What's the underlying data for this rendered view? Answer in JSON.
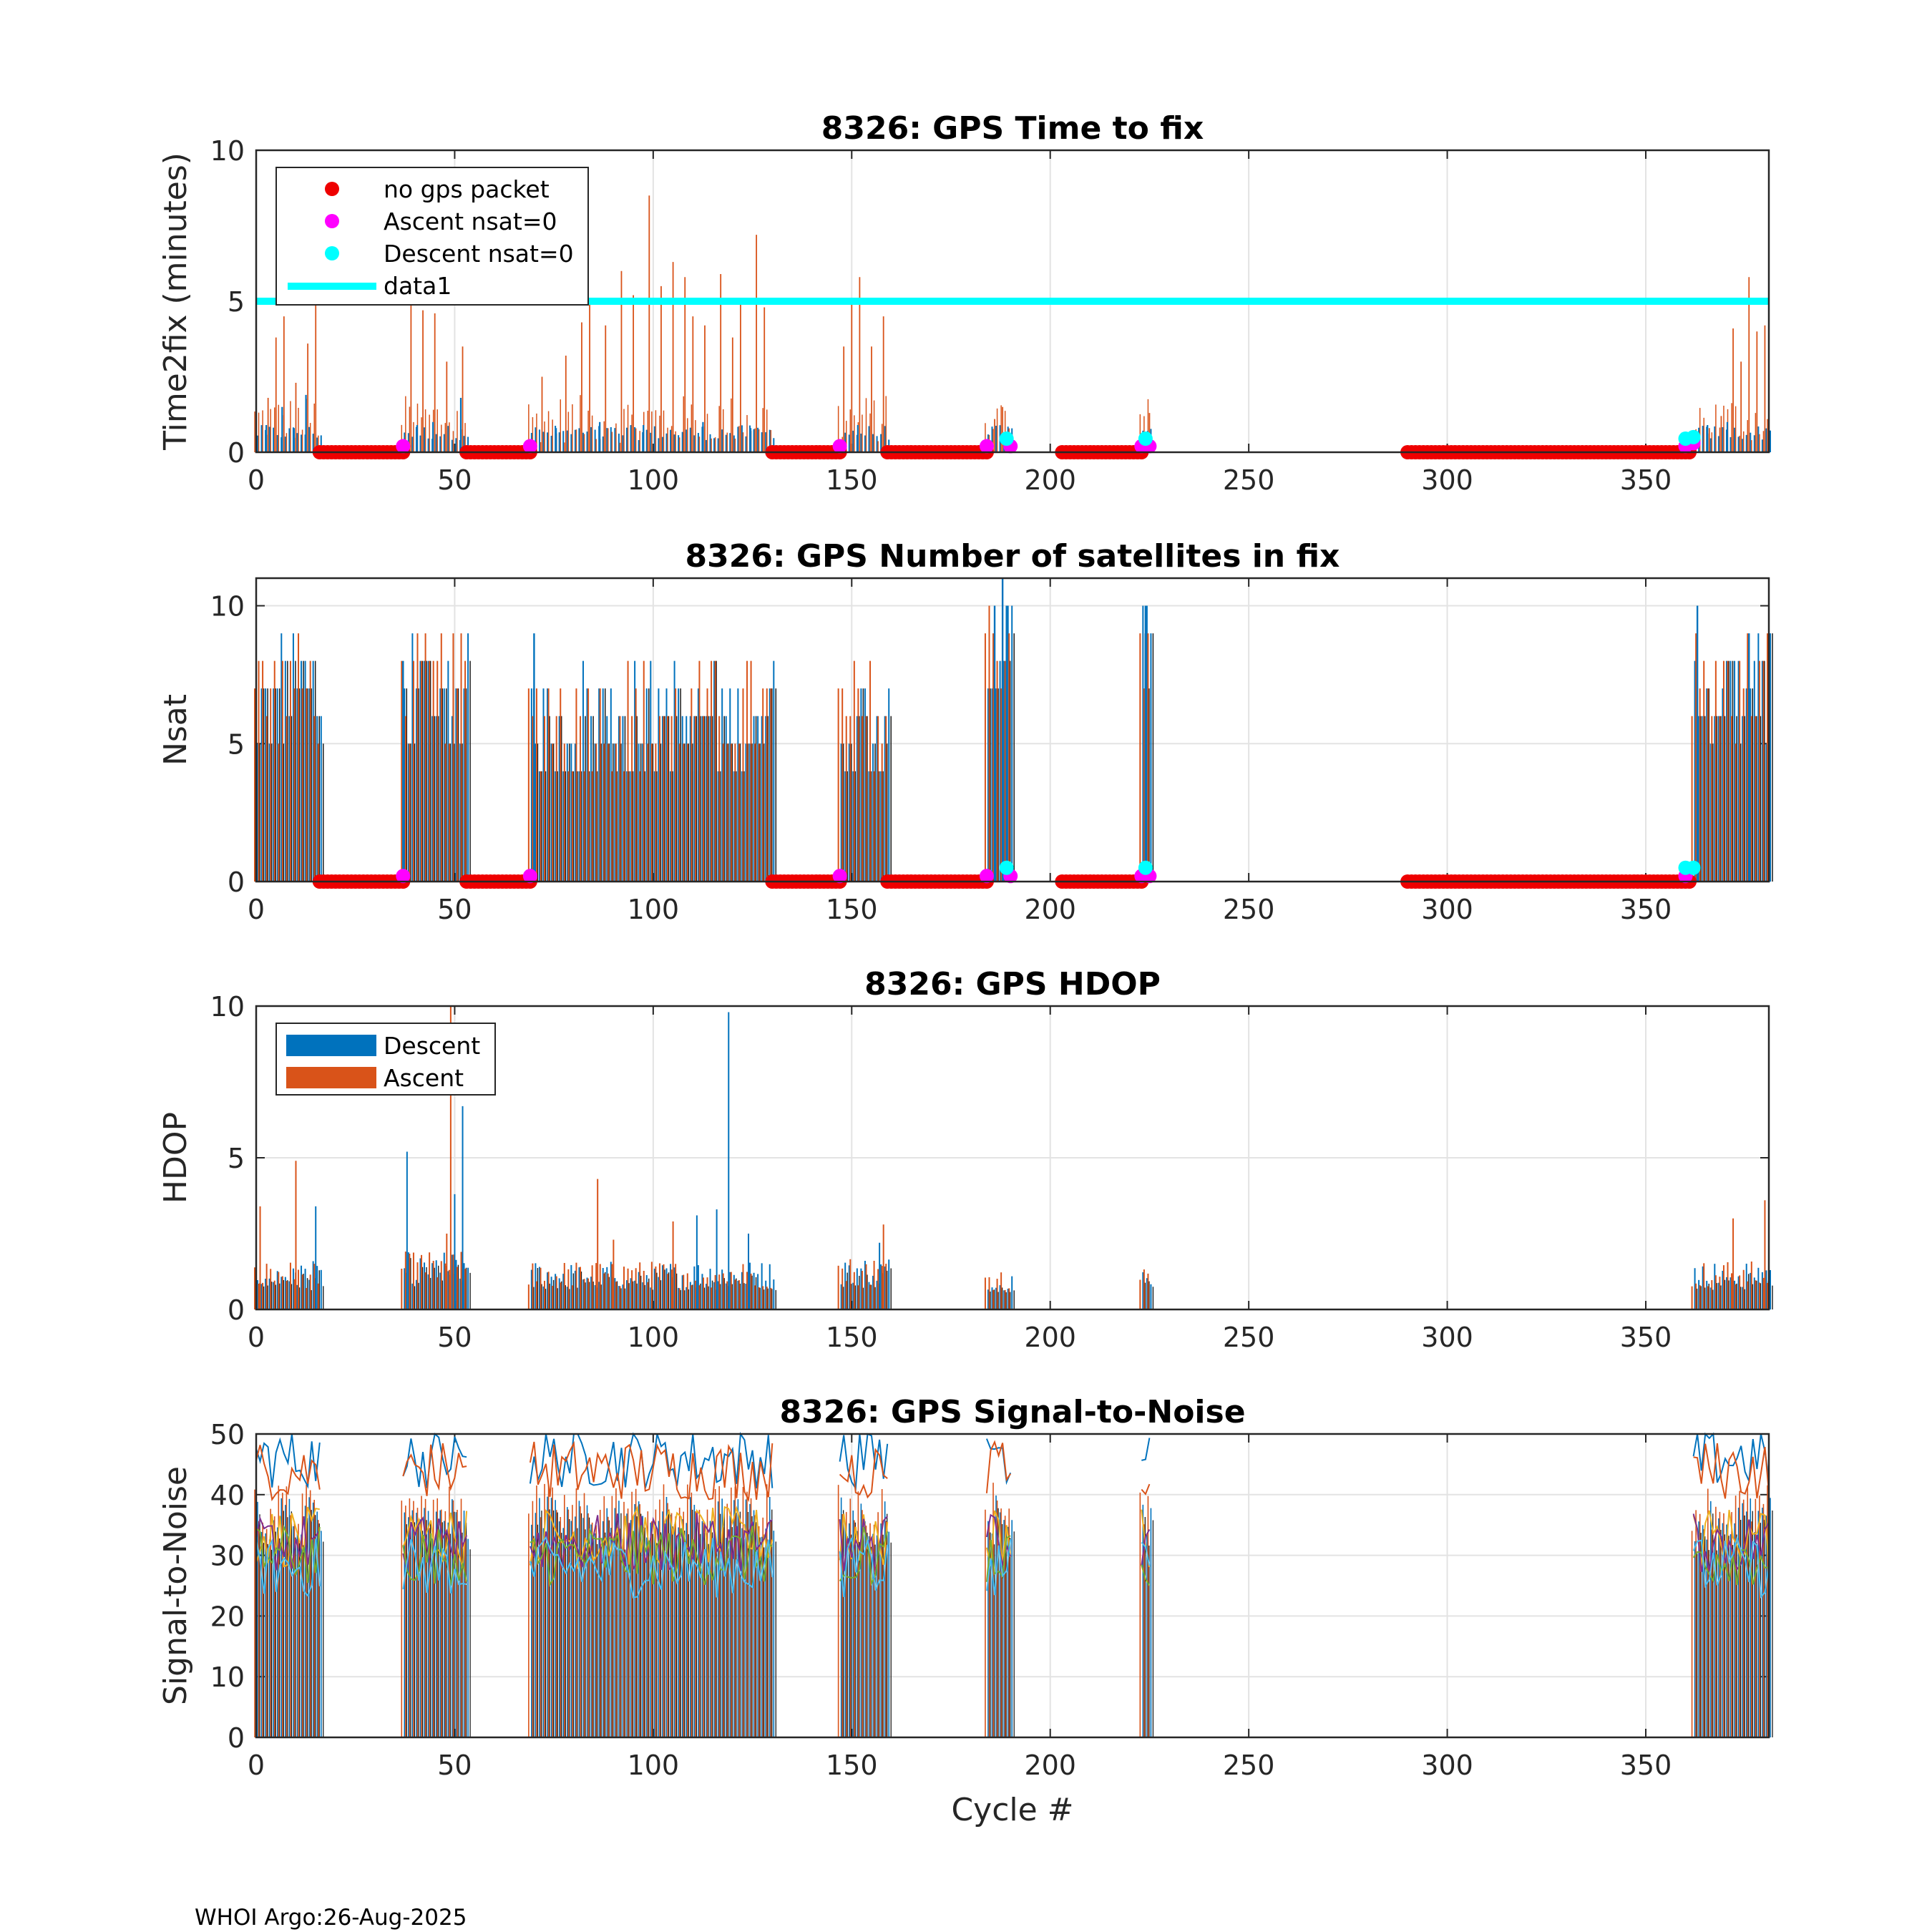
{
  "footer": "WHOI Argo:26-Aug-2025",
  "colors": {
    "descent": "#0072BD",
    "ascent": "#D95319",
    "no_gps": "#EE0000",
    "ascent_nsat0": "#FF00FF",
    "descent_nsat0": "#00FFFF",
    "data1": "#00FFFF",
    "snr_lines": [
      "#0072BD",
      "#D95319",
      "#EDB120",
      "#7E2F8E",
      "#77AC30",
      "#4DBEEE"
    ]
  },
  "chart_data": [
    {
      "id": "t2f",
      "type": "bar",
      "title": "8326: GPS Time to fix",
      "xlabel": "",
      "ylabel": "Time2fix (minutes)",
      "xlim": [
        0,
        381
      ],
      "ylim": [
        0,
        10
      ],
      "xticks": [
        "0",
        "50",
        "100",
        "150",
        "200",
        "250",
        "300",
        "350"
      ],
      "yticks": [
        "0",
        "5",
        "10"
      ],
      "grid": true,
      "legend": [
        "no gps packet",
        "Ascent nsat=0",
        "Descent nsat=0",
        "data1"
      ],
      "legend_location": "top-left",
      "data1_y": 5,
      "ascent_peaks": [
        {
          "x": 3,
          "y": 1.8
        },
        {
          "x": 5,
          "y": 3.8
        },
        {
          "x": 7,
          "y": 4.5
        },
        {
          "x": 10,
          "y": 2.3
        },
        {
          "x": 13,
          "y": 3.6
        },
        {
          "x": 15,
          "y": 5.0
        },
        {
          "x": 39,
          "y": 4.9
        },
        {
          "x": 42,
          "y": 4.7
        },
        {
          "x": 45,
          "y": 4.6
        },
        {
          "x": 48,
          "y": 3.0
        },
        {
          "x": 52,
          "y": 3.5
        },
        {
          "x": 72,
          "y": 2.5
        },
        {
          "x": 78,
          "y": 3.2
        },
        {
          "x": 82,
          "y": 4.3
        },
        {
          "x": 84,
          "y": 5.0
        },
        {
          "x": 88,
          "y": 4.2
        },
        {
          "x": 92,
          "y": 6.0
        },
        {
          "x": 95,
          "y": 5.2
        },
        {
          "x": 99,
          "y": 8.5
        },
        {
          "x": 102,
          "y": 5.5
        },
        {
          "x": 105,
          "y": 6.3
        },
        {
          "x": 108,
          "y": 5.8
        },
        {
          "x": 110,
          "y": 4.5
        },
        {
          "x": 113,
          "y": 4.2
        },
        {
          "x": 117,
          "y": 5.9
        },
        {
          "x": 120,
          "y": 3.8
        },
        {
          "x": 122,
          "y": 5.1
        },
        {
          "x": 126,
          "y": 7.2
        },
        {
          "x": 128,
          "y": 4.8
        },
        {
          "x": 148,
          "y": 3.5
        },
        {
          "x": 150,
          "y": 5.0
        },
        {
          "x": 152,
          "y": 5.8
        },
        {
          "x": 155,
          "y": 3.5
        },
        {
          "x": 158,
          "y": 4.5
        },
        {
          "x": 186,
          "y": 1.1
        },
        {
          "x": 188,
          "y": 1.5
        },
        {
          "x": 225,
          "y": 1.3
        },
        {
          "x": 366,
          "y": 0.8
        },
        {
          "x": 369,
          "y": 1.2
        },
        {
          "x": 372,
          "y": 4.1
        },
        {
          "x": 374,
          "y": 3.0
        },
        {
          "x": 376,
          "y": 5.8
        },
        {
          "x": 378,
          "y": 4.0
        },
        {
          "x": 380,
          "y": 4.2
        }
      ],
      "descent_peaks": [
        {
          "x": 2,
          "y": 0.9
        },
        {
          "x": 6,
          "y": 1.5
        },
        {
          "x": 9,
          "y": 0.8
        },
        {
          "x": 12,
          "y": 1.9
        },
        {
          "x": 40,
          "y": 0.9
        },
        {
          "x": 44,
          "y": 1.0
        },
        {
          "x": 51,
          "y": 1.8
        },
        {
          "x": 75,
          "y": 0.8
        },
        {
          "x": 86,
          "y": 1.0
        },
        {
          "x": 97,
          "y": 0.9
        },
        {
          "x": 112,
          "y": 1.0
        },
        {
          "x": 124,
          "y": 0.8
        },
        {
          "x": 151,
          "y": 0.9
        },
        {
          "x": 224,
          "y": 0.7
        },
        {
          "x": 365,
          "y": 0.9
        },
        {
          "x": 370,
          "y": 1.0
        }
      ],
      "no_gps_ranges": [
        [
          16,
          37
        ],
        [
          53,
          69
        ],
        [
          130,
          147
        ],
        [
          159,
          184
        ],
        [
          203,
          223
        ],
        [
          290,
          361
        ]
      ],
      "ascent_nsat0": [
        {
          "x": 37,
          "y": 0.2
        },
        {
          "x": 69,
          "y": 0.2
        },
        {
          "x": 147,
          "y": 0.2
        },
        {
          "x": 184,
          "y": 0.2
        },
        {
          "x": 190,
          "y": 0.2
        },
        {
          "x": 223,
          "y": 0.2
        },
        {
          "x": 225,
          "y": 0.2
        },
        {
          "x": 360,
          "y": 0.2
        },
        {
          "x": 362,
          "y": 0.3
        }
      ],
      "descent_nsat0": [
        {
          "x": 189,
          "y": 0.45
        },
        {
          "x": 224,
          "y": 0.45
        },
        {
          "x": 360,
          "y": 0.45
        },
        {
          "x": 362,
          "y": 0.5
        }
      ]
    },
    {
      "id": "nsat",
      "type": "bar",
      "title": "8326: GPS Number of satellites in fix",
      "xlabel": "",
      "ylabel": "Nsat",
      "xlim": [
        0,
        381
      ],
      "ylim": [
        0,
        11
      ],
      "xticks": [
        "0",
        "50",
        "100",
        "150",
        "200",
        "250",
        "300",
        "350"
      ],
      "yticks": [
        "0",
        "5",
        "10"
      ],
      "grid": true,
      "segments": [
        [
          0,
          16,
          7
        ],
        [
          37,
          53,
          7
        ],
        [
          69,
          130,
          6
        ],
        [
          147,
          159,
          6
        ],
        [
          184,
          190,
          9
        ],
        [
          223,
          225,
          9
        ],
        [
          362,
          381,
          7
        ]
      ],
      "highlights": [
        {
          "x": 186,
          "y": 10
        },
        {
          "x": 188,
          "y": 11
        },
        {
          "x": 189,
          "y": 10
        },
        {
          "x": 224,
          "y": 10
        },
        {
          "x": 363,
          "y": 10
        },
        {
          "x": 376,
          "y": 9
        },
        {
          "x": 70,
          "y": 9
        },
        {
          "x": 37,
          "y": 8
        }
      ],
      "no_gps_ranges": [
        [
          16,
          37
        ],
        [
          53,
          69
        ],
        [
          130,
          147
        ],
        [
          159,
          184
        ],
        [
          203,
          223
        ],
        [
          290,
          361
        ]
      ],
      "ascent_nsat0": [
        {
          "x": 37,
          "y": 0.2
        },
        {
          "x": 69,
          "y": 0.2
        },
        {
          "x": 147,
          "y": 0.2
        },
        {
          "x": 184,
          "y": 0.2
        },
        {
          "x": 190,
          "y": 0.2
        },
        {
          "x": 223,
          "y": 0.2
        },
        {
          "x": 225,
          "y": 0.2
        },
        {
          "x": 360,
          "y": 0.2
        }
      ],
      "descent_nsat0": [
        {
          "x": 189,
          "y": 0.5
        },
        {
          "x": 224,
          "y": 0.5
        },
        {
          "x": 360,
          "y": 0.5
        },
        {
          "x": 362,
          "y": 0.5
        }
      ]
    },
    {
      "id": "hdop",
      "type": "bar",
      "title": "8326: GPS HDOP",
      "xlabel": "",
      "ylabel": "HDOP",
      "xlim": [
        0,
        381
      ],
      "ylim": [
        0,
        10
      ],
      "xticks": [
        "0",
        "50",
        "100",
        "150",
        "200",
        "250",
        "300",
        "350"
      ],
      "yticks": [
        "0",
        "5",
        "10"
      ],
      "grid": true,
      "legend": [
        "Descent",
        "Ascent"
      ],
      "legend_location": "top-left",
      "segments": [
        [
          0,
          16,
          1.0
        ],
        [
          37,
          53,
          1.2
        ],
        [
          69,
          130,
          1.0
        ],
        [
          147,
          159,
          1.1
        ],
        [
          184,
          190,
          0.9
        ],
        [
          223,
          225,
          0.9
        ],
        [
          362,
          381,
          1.0
        ]
      ],
      "spikes": [
        {
          "x": 1,
          "y": 3.4,
          "s": "a"
        },
        {
          "x": 10,
          "y": 4.9,
          "s": "a"
        },
        {
          "x": 15,
          "y": 3.4,
          "s": "d"
        },
        {
          "x": 38,
          "y": 5.2,
          "s": "d"
        },
        {
          "x": 48,
          "y": 2.5,
          "s": "a"
        },
        {
          "x": 49,
          "y": 10,
          "s": "a"
        },
        {
          "x": 50,
          "y": 3.8,
          "s": "d"
        },
        {
          "x": 52,
          "y": 6.7,
          "s": "d"
        },
        {
          "x": 86,
          "y": 4.3,
          "s": "a"
        },
        {
          "x": 90,
          "y": 2.3,
          "s": "a"
        },
        {
          "x": 105,
          "y": 2.9,
          "s": "a"
        },
        {
          "x": 111,
          "y": 3.1,
          "s": "d"
        },
        {
          "x": 116,
          "y": 3.3,
          "s": "d"
        },
        {
          "x": 119,
          "y": 9.8,
          "s": "d"
        },
        {
          "x": 124,
          "y": 2.5,
          "s": "d"
        },
        {
          "x": 157,
          "y": 2.2,
          "s": "d"
        },
        {
          "x": 158,
          "y": 2.8,
          "s": "a"
        },
        {
          "x": 372,
          "y": 3.0,
          "s": "a"
        },
        {
          "x": 380,
          "y": 3.6,
          "s": "a"
        }
      ]
    },
    {
      "id": "snr",
      "type": "line",
      "title": "8326: GPS Signal-to-Noise",
      "xlabel": "Cycle #",
      "ylabel": "Signal-to-Noise",
      "xlim": [
        0,
        381
      ],
      "ylim": [
        0,
        50
      ],
      "xticks": [
        "0",
        "50",
        "100",
        "150",
        "200",
        "250",
        "300",
        "350"
      ],
      "yticks": [
        "0",
        "10",
        "20",
        "30",
        "40",
        "50"
      ],
      "grid": true,
      "segments": [
        [
          0,
          16
        ],
        [
          37,
          53
        ],
        [
          69,
          130
        ],
        [
          147,
          159
        ],
        [
          184,
          190
        ],
        [
          223,
          225
        ],
        [
          362,
          381
        ]
      ],
      "series_levels": [
        46,
        44,
        33,
        32,
        30,
        28
      ],
      "bar_level": 40
    }
  ]
}
